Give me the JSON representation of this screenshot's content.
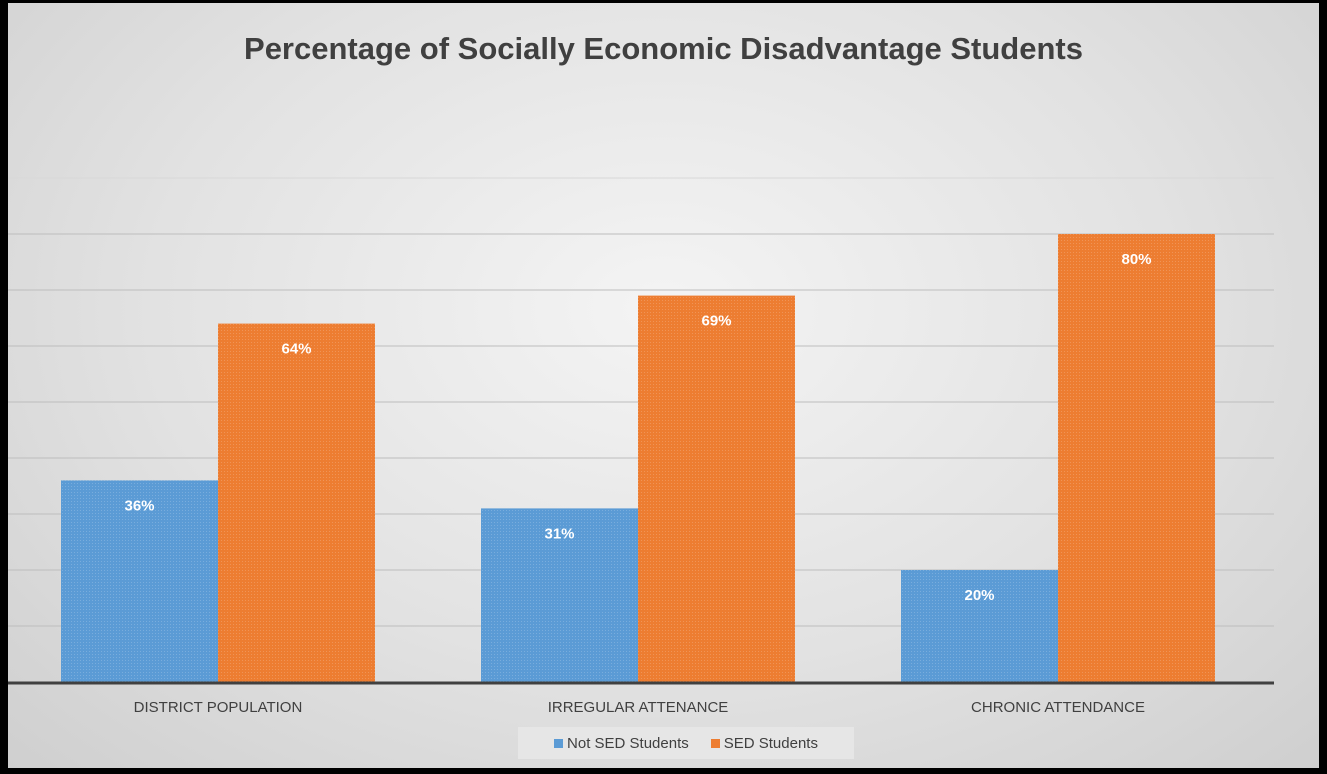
{
  "chart_data": {
    "type": "bar",
    "title": "Percentage of Socially Economic Disadvantage Students",
    "xlabel": "",
    "ylabel": "",
    "categories": [
      "DISTRICT POPULATION",
      "IRREGULAR ATTENANCE",
      "CHRONIC ATTENDANCE"
    ],
    "series": [
      {
        "name": "Not SED Students",
        "values": [
          36,
          31,
          20
        ],
        "labels": [
          "36%",
          "31%",
          "20%"
        ],
        "color": "#5b9bd5"
      },
      {
        "name": "SED Students",
        "values": [
          64,
          69,
          80
        ],
        "labels": [
          "64%",
          "69%",
          "80%"
        ],
        "color": "#ed7d31"
      }
    ],
    "ylim": [
      0,
      90
    ],
    "gridlines": true,
    "y_tick_labels_visible": false,
    "legend_position": "bottom"
  }
}
